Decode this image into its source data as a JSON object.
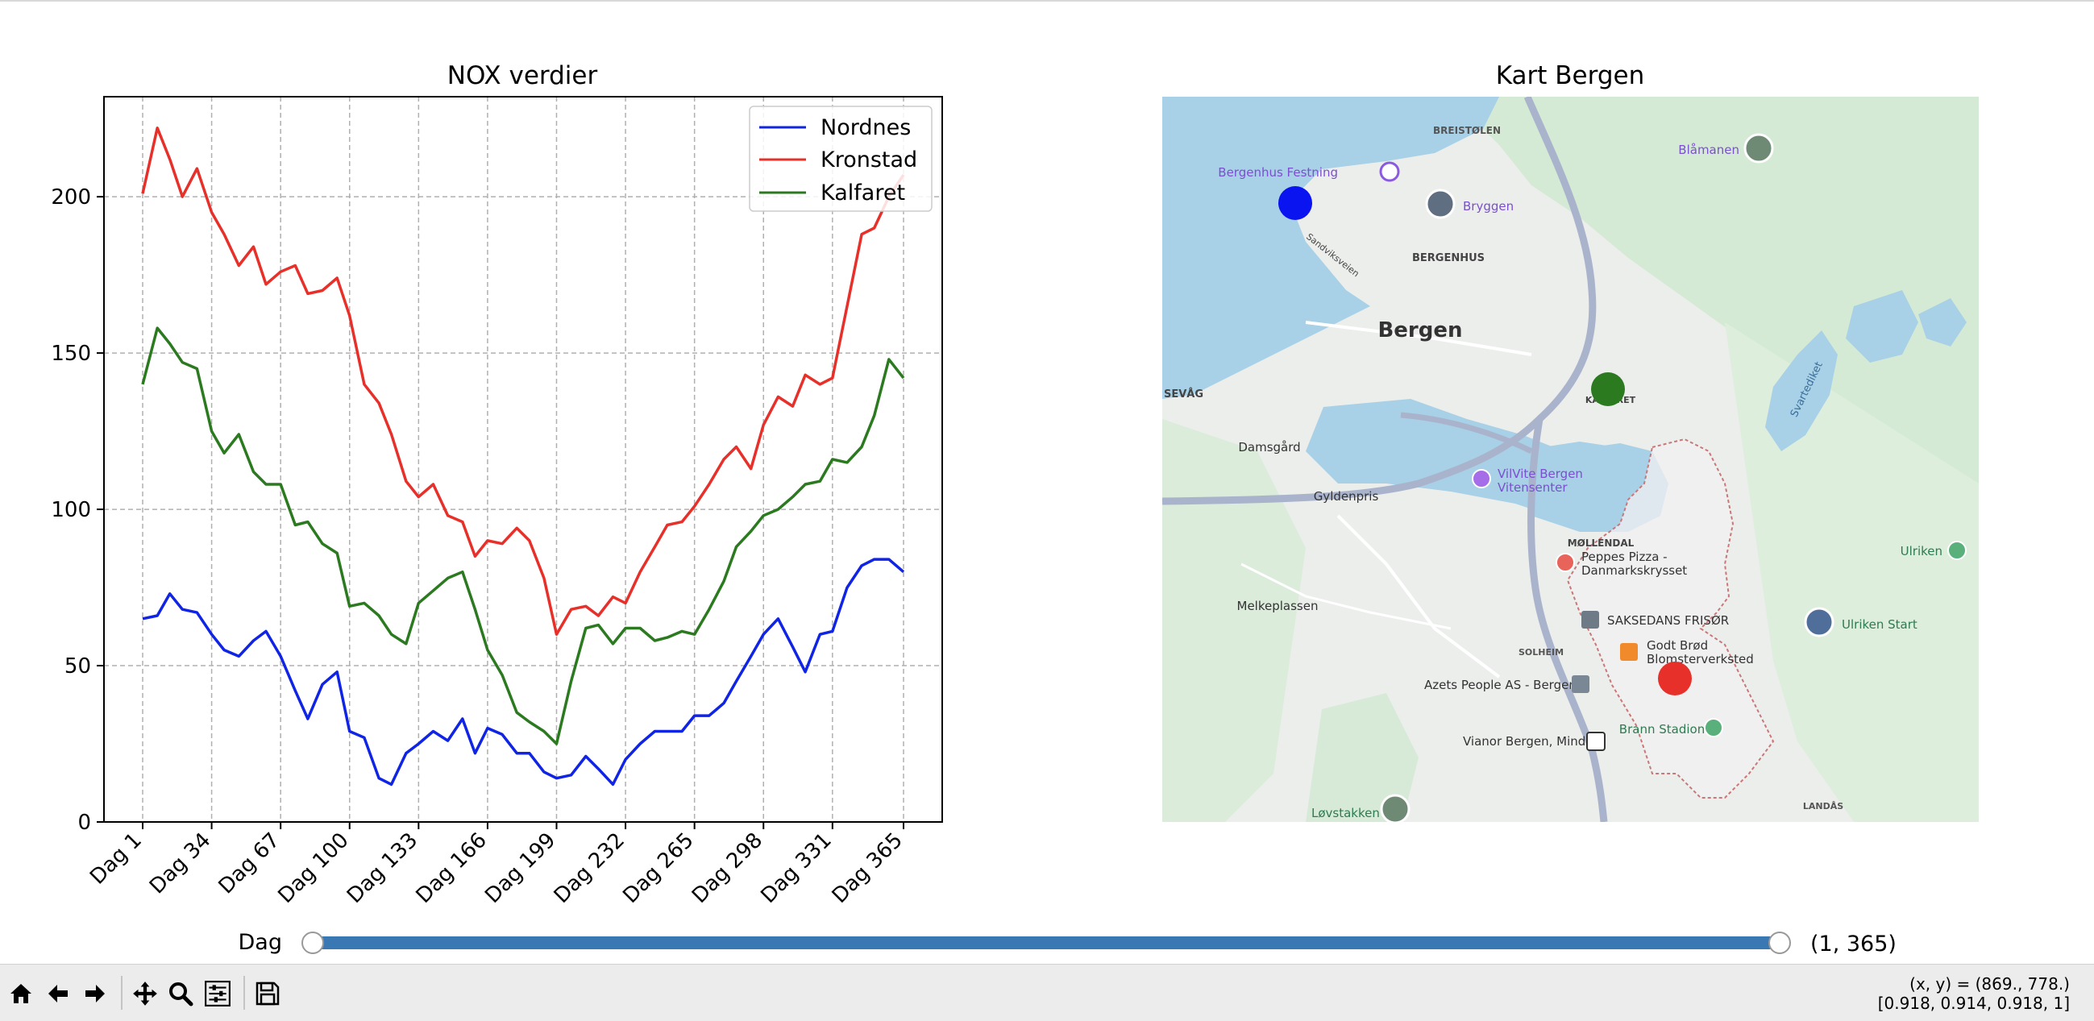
{
  "chart_data": [
    {
      "type": "line",
      "title": "NOX verdier",
      "xlabel": "",
      "ylabel": "",
      "x_range": [
        1,
        365
      ],
      "ylim": [
        0,
        232
      ],
      "y_ticks": [
        0,
        50,
        100,
        150,
        200
      ],
      "x_tick_labels": [
        "Dag 1",
        "Dag 34",
        "Dag 67",
        "Dag 100",
        "Dag 133",
        "Dag 166",
        "Dag 199",
        "Dag 232",
        "Dag 265",
        "Dag 298",
        "Dag 331",
        "Dag 365"
      ],
      "x_tick_values": [
        1,
        34,
        67,
        100,
        133,
        166,
        199,
        232,
        265,
        298,
        331,
        365
      ],
      "grid": true,
      "legend_position": "top-right",
      "series": [
        {
          "name": "Nordnes",
          "color": "#1024e6",
          "x": [
            1,
            8,
            14,
            20,
            27,
            34,
            40,
            47,
            54,
            60,
            67,
            74,
            80,
            87,
            94,
            100,
            107,
            114,
            120,
            127,
            133,
            140,
            147,
            154,
            160,
            166,
            173,
            180,
            186,
            193,
            199,
            206,
            213,
            219,
            226,
            232,
            239,
            246,
            252,
            259,
            265,
            272,
            279,
            285,
            292,
            298,
            305,
            312,
            318,
            325,
            331,
            338,
            345,
            351,
            358,
            365
          ],
          "values": [
            65,
            66,
            73,
            68,
            67,
            60,
            55,
            53,
            58,
            61,
            53,
            42,
            33,
            44,
            48,
            29,
            27,
            14,
            12,
            22,
            25,
            29,
            26,
            33,
            22,
            30,
            28,
            22,
            22,
            16,
            14,
            15,
            21,
            17,
            12,
            20,
            25,
            29,
            29,
            29,
            34,
            34,
            38,
            45,
            53,
            60,
            65,
            56,
            48,
            60,
            61,
            75,
            82,
            84,
            84,
            80
          ]
        },
        {
          "name": "Kronstad",
          "color": "#e8302a",
          "x": [
            1,
            8,
            14,
            20,
            27,
            34,
            40,
            47,
            54,
            60,
            67,
            74,
            80,
            87,
            94,
            100,
            107,
            114,
            120,
            127,
            133,
            140,
            147,
            154,
            160,
            166,
            173,
            180,
            186,
            193,
            199,
            206,
            213,
            219,
            226,
            232,
            239,
            246,
            252,
            259,
            265,
            272,
            279,
            285,
            292,
            298,
            305,
            312,
            318,
            325,
            331,
            338,
            345,
            351,
            358,
            365
          ],
          "values": [
            201,
            222,
            212,
            200,
            209,
            195,
            188,
            178,
            184,
            172,
            176,
            178,
            169,
            170,
            174,
            162,
            140,
            134,
            124,
            109,
            104,
            108,
            98,
            96,
            85,
            90,
            89,
            94,
            90,
            78,
            60,
            68,
            69,
            66,
            72,
            70,
            80,
            88,
            95,
            96,
            101,
            108,
            116,
            120,
            113,
            127,
            136,
            133,
            143,
            140,
            142,
            165,
            188,
            190,
            200,
            207
          ]
        },
        {
          "name": "Kalfaret",
          "color": "#2b7a20",
          "x": [
            1,
            8,
            14,
            20,
            27,
            34,
            40,
            47,
            54,
            60,
            67,
            74,
            80,
            87,
            94,
            100,
            107,
            114,
            120,
            127,
            133,
            140,
            147,
            154,
            160,
            166,
            173,
            180,
            186,
            193,
            199,
            206,
            213,
            219,
            226,
            232,
            239,
            246,
            252,
            259,
            265,
            272,
            279,
            285,
            292,
            298,
            305,
            312,
            318,
            325,
            331,
            338,
            345,
            351,
            358,
            365
          ],
          "values": [
            140,
            158,
            153,
            147,
            145,
            125,
            118,
            124,
            112,
            108,
            108,
            95,
            96,
            89,
            86,
            69,
            70,
            66,
            60,
            57,
            70,
            74,
            78,
            80,
            68,
            55,
            47,
            35,
            32,
            29,
            25,
            45,
            62,
            63,
            57,
            62,
            62,
            58,
            59,
            61,
            60,
            68,
            77,
            88,
            93,
            98,
            100,
            104,
            108,
            109,
            116,
            115,
            120,
            130,
            148,
            142
          ]
        }
      ]
    },
    {
      "type": "map",
      "title": "Kart Bergen",
      "map_labels": {
        "breistolen": "BREISTØLEN",
        "blamanen": "Blåmanen",
        "bergenhus_festning": "Bergenhus Festning",
        "bryggen": "Bryggen",
        "bergenhus": "BERGENHUS",
        "bergen": "Bergen",
        "sevag": "SEVÅG",
        "kalfaret": "KALFARET",
        "damsgard": "Damsgård",
        "vilvite_1": "VilVite Bergen",
        "vilvite_2": "Vitensenter",
        "gyldenpris": "Gyldenpris",
        "mollendal": "MØLLENDAL",
        "peppes_1": "Peppes Pizza -",
        "peppes_2": "Danmarkskrysset",
        "ulriken": "Ulriken",
        "melkeplassen": "Melkeplassen",
        "saksedans": "SAKSEDANS FRISØR",
        "ulriken_start": "Ulriken Start",
        "solheim": "SOLHEIM",
        "godt_brod_1": "Godt Brød",
        "godt_brod_2": "Blomsterverksted",
        "azets": "Azets People AS - Bergen",
        "brann_stadion": "Brann Stadion",
        "vianor": "Vianor Bergen, Minde",
        "lovstakken": "Løvstakken",
        "landas": "LANDÅS",
        "svartediket": "Svartediket",
        "sandviksveien": "Sandviksveien"
      },
      "station_markers": [
        {
          "name": "Nordnes",
          "color": "#0a14f0"
        },
        {
          "name": "Kalfaret",
          "color": "#2b7a20"
        },
        {
          "name": "Kronstad",
          "color": "#e8302a"
        }
      ]
    }
  ],
  "slider": {
    "label": "Dag",
    "min": 1,
    "max": 365,
    "value_low": 1,
    "value_high": 365,
    "value_text": "(1, 365)",
    "track_color": "#3a78b4"
  },
  "toolbar": {
    "buttons": [
      "home-icon",
      "back-arrow-icon",
      "forward-arrow-icon",
      "pan-icon",
      "zoom-icon",
      "configure-subplots-icon",
      "save-icon"
    ]
  },
  "status": {
    "coords_line1": "(x, y) = (869., 778.)",
    "coords_line2": "[0.918, 0.914, 0.918, 1]"
  }
}
